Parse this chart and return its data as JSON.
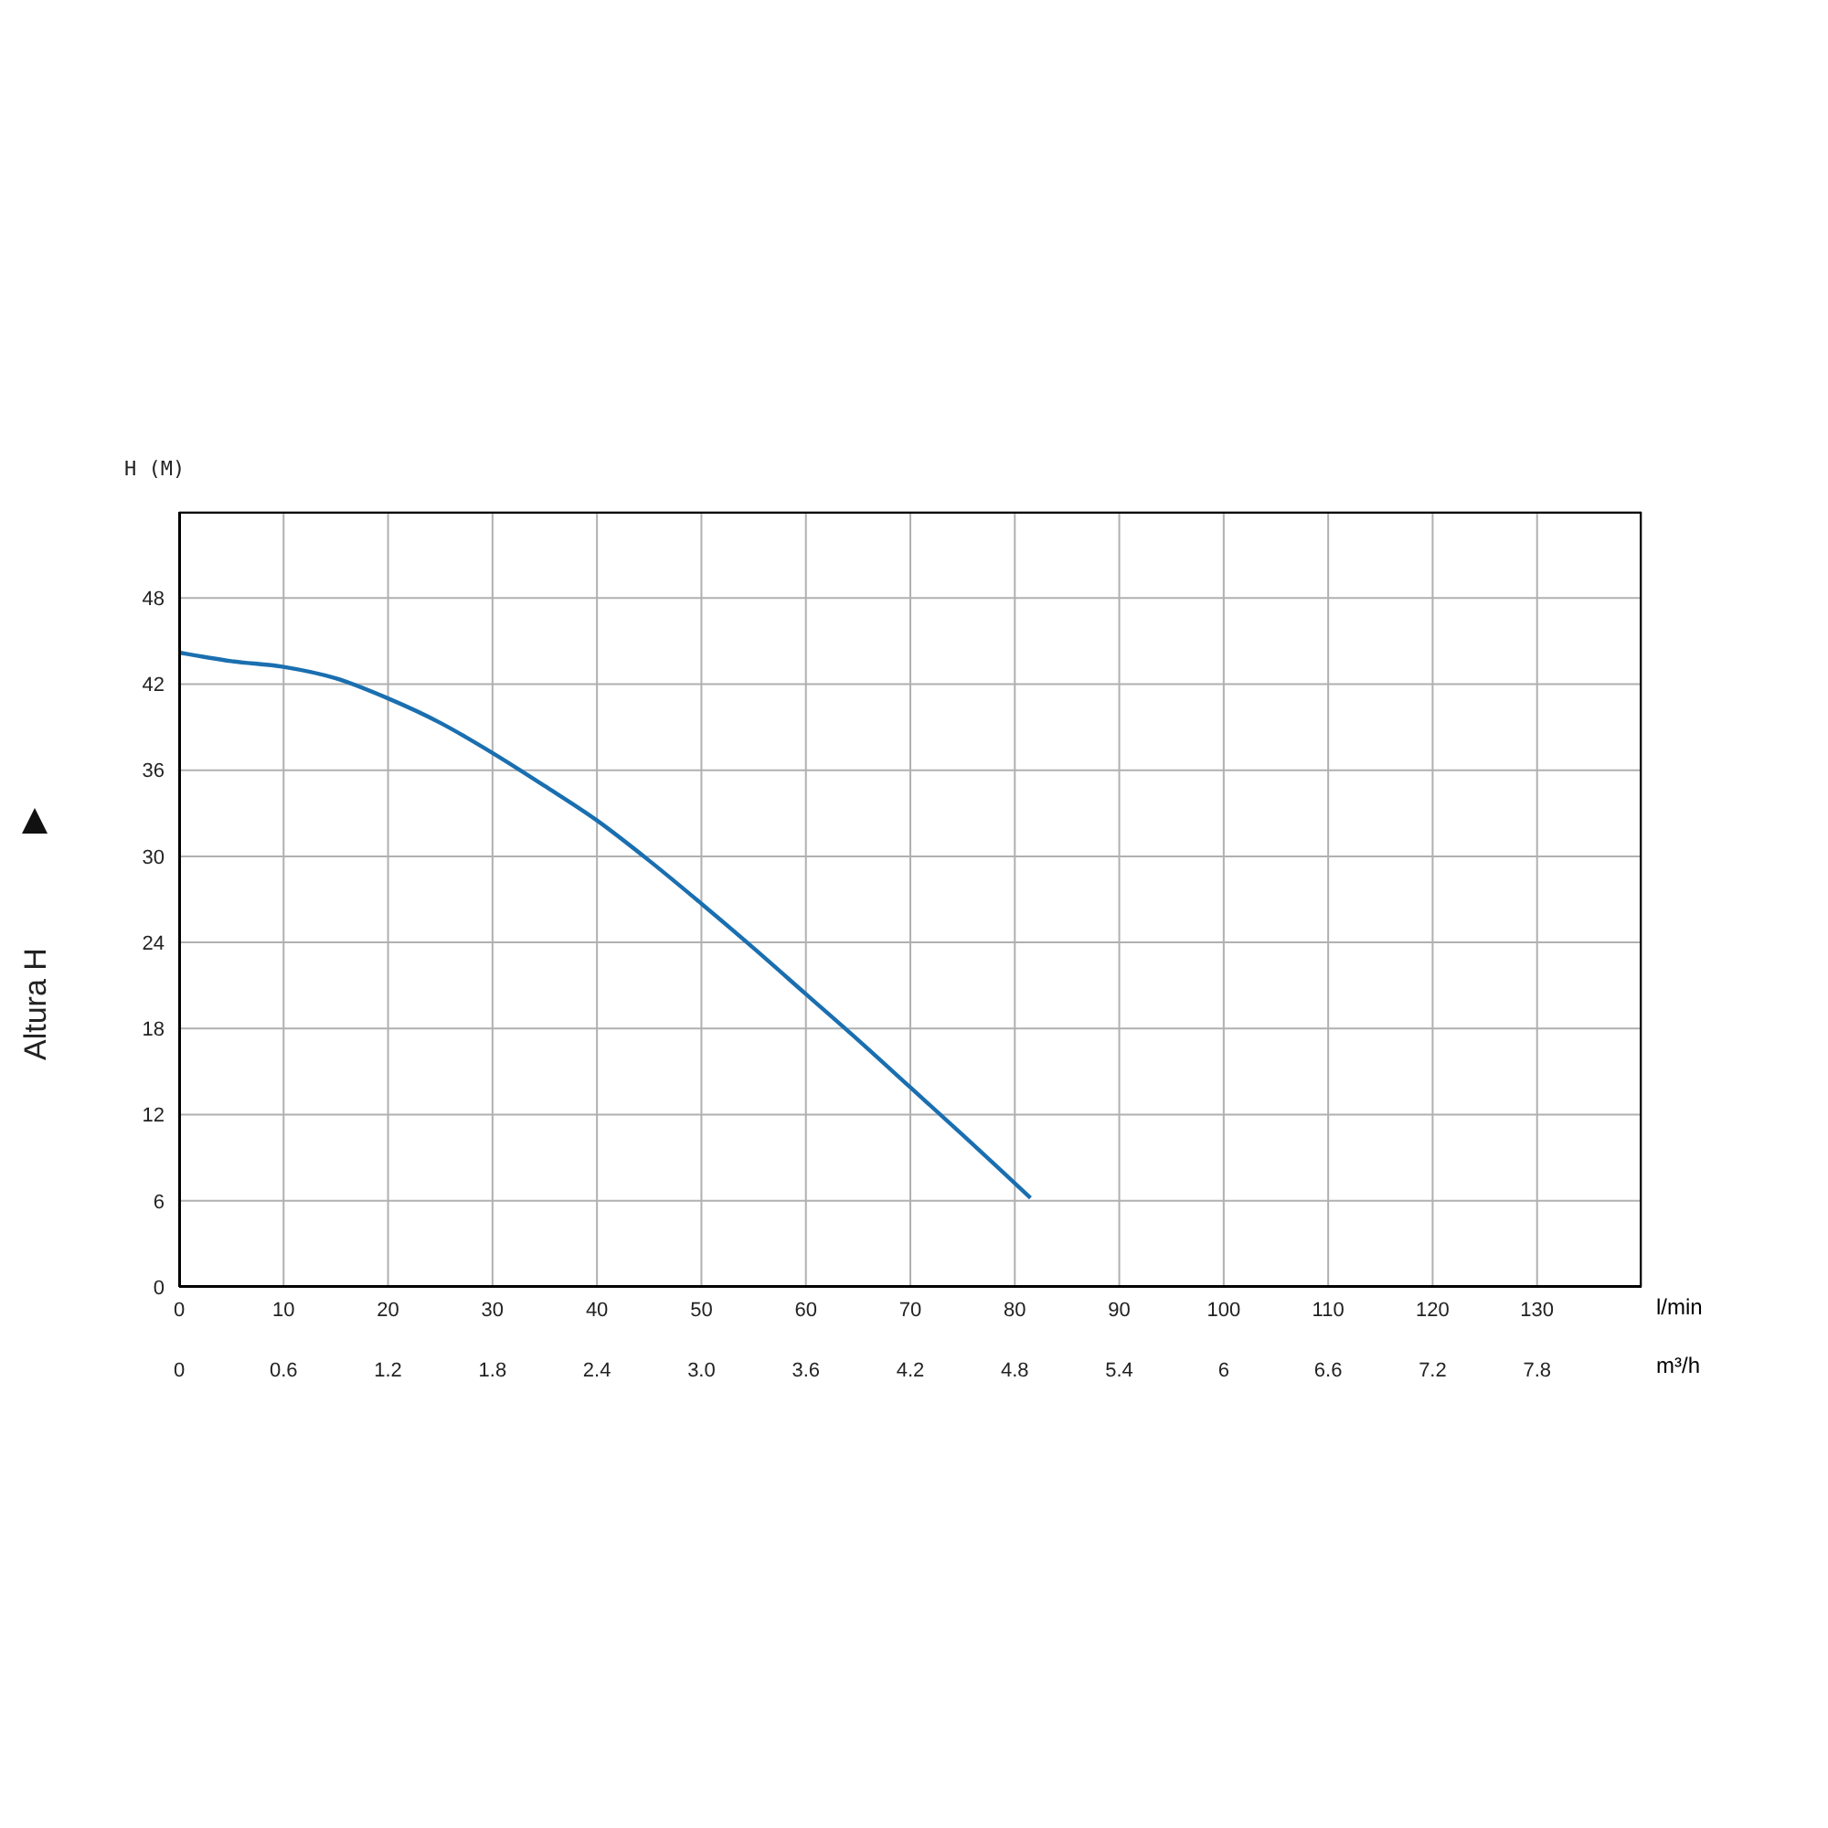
{
  "chart_data": {
    "type": "line",
    "ylabel": "Altura H",
    "xlabel": "l/min",
    "x2label": "m³/h",
    "annotations": [
      "H (M)"
    ],
    "xlim": [
      0,
      140
    ],
    "xticks": [
      0,
      10,
      20,
      30,
      40,
      50,
      60,
      70,
      80,
      90,
      100,
      110,
      120,
      130
    ],
    "x2lim": [
      0,
      8.4
    ],
    "x2ticks": [
      0,
      0.6,
      1.2,
      1.8,
      2.4,
      {
        "value": 3,
        "label": "3.0"
      },
      3.6,
      4.2,
      4.8,
      5.4,
      6,
      6.6,
      7.2,
      7.8
    ],
    "ylim": [
      0,
      54
    ],
    "yticks": [
      0,
      6,
      12,
      18,
      24,
      30,
      36,
      42,
      48
    ],
    "grid": true,
    "marker": "none",
    "line_style": "solid",
    "series": [
      {
        "color": "#1a6fb0",
        "x": [
          0,
          5,
          10,
          15,
          20,
          25,
          30,
          35,
          40,
          45,
          50,
          55,
          60,
          65,
          70,
          75,
          81.5
        ],
        "values": [
          44.2,
          43.6,
          43.2,
          42.4,
          41,
          39.3,
          37.2,
          34.9,
          32.5,
          29.7,
          26.7,
          23.6,
          20.4,
          17.2,
          13.9,
          10.6,
          6.2
        ]
      }
    ]
  }
}
